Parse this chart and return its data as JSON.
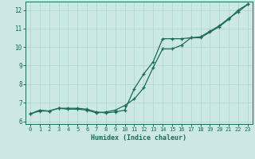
{
  "xlabel": "Humidex (Indice chaleur)",
  "bg_color": "#cce8e4",
  "grid_color": "#b8d8d4",
  "line_color": "#1a6b5a",
  "xlim": [
    -0.5,
    23.5
  ],
  "ylim": [
    5.85,
    12.45
  ],
  "xticks": [
    0,
    1,
    2,
    3,
    4,
    5,
    6,
    7,
    8,
    9,
    10,
    11,
    12,
    13,
    14,
    15,
    16,
    17,
    18,
    19,
    20,
    21,
    22,
    23
  ],
  "yticks": [
    6,
    7,
    8,
    9,
    10,
    11,
    12
  ],
  "series1_x": [
    0,
    1,
    2,
    3,
    4,
    5,
    6,
    7,
    8,
    9,
    10,
    11,
    12,
    13,
    14,
    15,
    16,
    17,
    18,
    19,
    20,
    21,
    22,
    23
  ],
  "series1_y": [
    6.4,
    6.6,
    6.55,
    6.7,
    6.7,
    6.7,
    6.65,
    6.5,
    6.45,
    6.5,
    6.6,
    7.75,
    8.55,
    9.2,
    10.45,
    10.45,
    10.45,
    10.5,
    10.55,
    10.85,
    11.15,
    11.55,
    11.9,
    12.3
  ],
  "series2_x": [
    0,
    1,
    2,
    3,
    4,
    5,
    6,
    7,
    8,
    9,
    10,
    11,
    12,
    13,
    14,
    15,
    16,
    17,
    18,
    19,
    20,
    21,
    22,
    23
  ],
  "series2_y": [
    6.4,
    6.55,
    6.55,
    6.7,
    6.65,
    6.65,
    6.6,
    6.45,
    6.5,
    6.6,
    6.85,
    7.2,
    7.8,
    8.9,
    9.9,
    9.9,
    10.1,
    10.5,
    10.5,
    10.8,
    11.1,
    11.5,
    12.0,
    12.3
  ]
}
